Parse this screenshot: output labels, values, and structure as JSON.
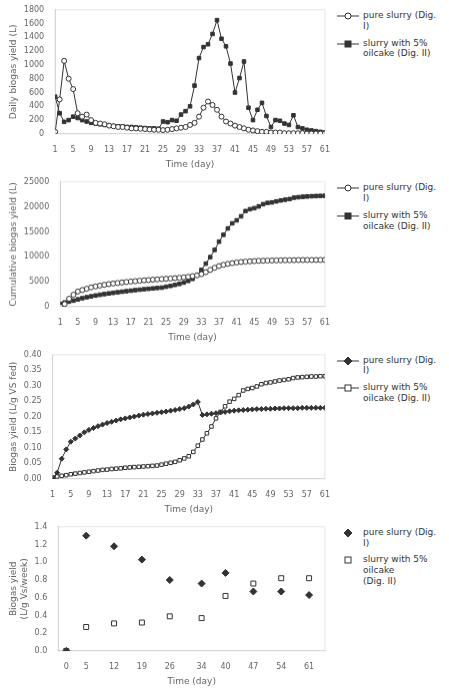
{
  "chart_data": [
    {
      "type": "line",
      "xlabel": "Time (day)",
      "ylabel": "Daily biogas yield (L)",
      "xlim": [
        1,
        61
      ],
      "ylim": [
        0,
        1800
      ],
      "xticks": [
        1,
        5,
        9,
        13,
        17,
        21,
        25,
        29,
        33,
        37,
        41,
        45,
        49,
        53,
        57,
        61
      ],
      "yticks": [
        0,
        200,
        400,
        600,
        800,
        1000,
        1200,
        1400,
        1600,
        1800
      ],
      "grid": false,
      "legend": "upper right",
      "x": [
        1,
        2,
        3,
        4,
        5,
        6,
        7,
        8,
        9,
        10,
        11,
        12,
        13,
        14,
        15,
        16,
        17,
        18,
        19,
        20,
        21,
        22,
        23,
        24,
        25,
        26,
        27,
        28,
        29,
        30,
        31,
        32,
        33,
        34,
        35,
        36,
        37,
        38,
        39,
        40,
        41,
        42,
        43,
        44,
        45,
        46,
        47,
        48,
        49,
        50,
        51,
        52,
        53,
        54,
        55,
        56,
        57,
        58,
        59,
        60,
        61
      ],
      "series": [
        {
          "name": "pure slurry (Dig. I)",
          "color": "#333333",
          "marker": "circle_open",
          "values": [
            30,
            500,
            1060,
            800,
            650,
            300,
            250,
            280,
            200,
            160,
            150,
            140,
            120,
            110,
            100,
            100,
            90,
            80,
            80,
            75,
            70,
            65,
            60,
            60,
            55,
            60,
            70,
            80,
            90,
            100,
            130,
            160,
            250,
            380,
            470,
            420,
            350,
            250,
            180,
            150,
            120,
            100,
            80,
            60,
            50,
            40,
            30,
            30,
            20,
            20,
            20,
            10,
            10,
            10,
            10,
            10,
            5,
            5,
            5,
            5,
            5
          ]
        },
        {
          "name": "slurry with 5%\noilcake (Dig. II)",
          "color": "#333333",
          "marker": "square",
          "values": [
            540,
            300,
            175,
            200,
            250,
            230,
            200,
            180,
            160,
            150,
            140,
            130,
            120,
            115,
            110,
            110,
            100,
            100,
            95,
            90,
            85,
            80,
            80,
            75,
            180,
            170,
            200,
            190,
            280,
            330,
            400,
            700,
            1100,
            1260,
            1300,
            1450,
            1650,
            1380,
            1270,
            1020,
            600,
            810,
            1050,
            380,
            200,
            350,
            450,
            260,
            100,
            200,
            190,
            150,
            130,
            270,
            100,
            80,
            60,
            50,
            40,
            30,
            20
          ]
        }
      ]
    },
    {
      "type": "line",
      "xlabel": "Time (day)",
      "ylabel": "Cumulative biogas yield (L)",
      "xlim": [
        1,
        61
      ],
      "ylim": [
        0,
        25000
      ],
      "xticks": [
        1,
        5,
        9,
        13,
        17,
        21,
        25,
        29,
        33,
        37,
        41,
        45,
        49,
        53,
        57,
        61
      ],
      "yticks": [
        0,
        5000,
        10000,
        15000,
        20000,
        25000
      ],
      "grid": false,
      "legend": "upper right",
      "x": [
        1,
        2,
        3,
        4,
        5,
        6,
        7,
        8,
        9,
        10,
        11,
        12,
        13,
        14,
        15,
        16,
        17,
        18,
        19,
        20,
        21,
        22,
        23,
        24,
        25,
        26,
        27,
        28,
        29,
        30,
        31,
        32,
        33,
        34,
        35,
        36,
        37,
        38,
        39,
        40,
        41,
        42,
        43,
        44,
        45,
        46,
        47,
        48,
        49,
        50,
        51,
        52,
        53,
        54,
        55,
        56,
        57,
        58,
        59,
        60,
        61
      ],
      "series": [
        {
          "name": "pure slurry (Dig. I)",
          "color": "#333333",
          "marker": "circle_open",
          "values": [
            30,
            530,
            1590,
            2390,
            3040,
            3340,
            3590,
            3870,
            4070,
            4230,
            4380,
            4520,
            4640,
            4750,
            4850,
            4950,
            5040,
            5120,
            5200,
            5275,
            5345,
            5410,
            5470,
            5530,
            5585,
            5645,
            5715,
            5795,
            5885,
            5985,
            6115,
            6275,
            6525,
            6905,
            7375,
            7795,
            8145,
            8395,
            8575,
            8725,
            8845,
            8945,
            9025,
            9085,
            9135,
            9175,
            9205,
            9235,
            9255,
            9275,
            9295,
            9305,
            9315,
            9325,
            9335,
            9345,
            9350,
            9355,
            9360,
            9365,
            9370
          ]
        },
        {
          "name": "slurry with 5%\noilcake (Dig. II)",
          "color": "#333333",
          "marker": "square",
          "values": [
            540,
            840,
            1015,
            1215,
            1465,
            1695,
            1895,
            2075,
            2235,
            2385,
            2525,
            2655,
            2775,
            2890,
            3000,
            3110,
            3210,
            3310,
            3405,
            3495,
            3580,
            3660,
            3740,
            3815,
            3995,
            4165,
            4365,
            4555,
            4835,
            5165,
            5565,
            6265,
            7365,
            8625,
            9925,
            11375,
            13025,
            14405,
            15675,
            16695,
            17295,
            18105,
            19155,
            19535,
            19735,
            20085,
            20535,
            20795,
            20895,
            21095,
            21285,
            21435,
            21565,
            21835,
            21935,
            22015,
            22075,
            22125,
            22165,
            22195,
            22215
          ]
        }
      ]
    },
    {
      "type": "line",
      "xlabel": "Time (day)",
      "ylabel": "Biogas yield (L/g VS fed)",
      "xlim": [
        1,
        61
      ],
      "ylim": [
        0,
        0.4
      ],
      "xticks": [
        1,
        5,
        9,
        13,
        17,
        21,
        25,
        29,
        33,
        37,
        41,
        45,
        49,
        53,
        57,
        61
      ],
      "yticks": [
        {
          "value": 0.0,
          "label": "0.00"
        },
        0.05,
        {
          "value": 0.1,
          "label": "0.10"
        },
        0.15,
        {
          "value": 0.2,
          "label": "0.20"
        },
        0.25,
        {
          "value": 0.3,
          "label": "0.30"
        },
        0.35,
        {
          "value": 0.4,
          "label": "0.40"
        }
      ],
      "grid": false,
      "legend": "upper right",
      "x": [
        1,
        2,
        3,
        4,
        5,
        6,
        7,
        8,
        9,
        10,
        11,
        12,
        13,
        14,
        15,
        16,
        17,
        18,
        19,
        20,
        21,
        22,
        23,
        24,
        25,
        26,
        27,
        28,
        29,
        30,
        31,
        32,
        33,
        34,
        35,
        36,
        37,
        38,
        39,
        40,
        41,
        42,
        43,
        44,
        45,
        46,
        47,
        48,
        49,
        50,
        51,
        52,
        53,
        54,
        55,
        56,
        57,
        58,
        59,
        60,
        61
      ],
      "series": [
        {
          "name": "pure slurry (Dig. I)",
          "color": "#333333",
          "marker": "diamond",
          "values": [
            0.001,
            0.02,
            0.065,
            0.095,
            0.12,
            0.13,
            0.14,
            0.15,
            0.158,
            0.164,
            0.17,
            0.175,
            0.18,
            0.184,
            0.188,
            0.192,
            0.195,
            0.198,
            0.201,
            0.204,
            0.207,
            0.209,
            0.211,
            0.213,
            0.215,
            0.217,
            0.22,
            0.222,
            0.225,
            0.228,
            0.233,
            0.24,
            0.248,
            0.206,
            0.208,
            0.21,
            0.212,
            0.214,
            0.216,
            0.218,
            0.22,
            0.221,
            0.222,
            0.223,
            0.224,
            0.225,
            0.225,
            0.226,
            0.226,
            0.227,
            0.227,
            0.228,
            0.228,
            0.228,
            0.228,
            0.229,
            0.229,
            0.229,
            0.229,
            0.229,
            0.229
          ]
        },
        {
          "name": "slurry with 5%\noilcake (Dig. II)",
          "color": "#333333",
          "marker": "square_open",
          "values": [
            0.005,
            0.008,
            0.01,
            0.012,
            0.015,
            0.017,
            0.019,
            0.021,
            0.023,
            0.025,
            0.027,
            0.029,
            0.03,
            0.032,
            0.033,
            0.034,
            0.036,
            0.037,
            0.038,
            0.039,
            0.04,
            0.041,
            0.042,
            0.043,
            0.046,
            0.049,
            0.052,
            0.055,
            0.06,
            0.066,
            0.073,
            0.087,
            0.107,
            0.127,
            0.147,
            0.169,
            0.195,
            0.216,
            0.234,
            0.249,
            0.258,
            0.27,
            0.285,
            0.29,
            0.293,
            0.298,
            0.305,
            0.309,
            0.311,
            0.314,
            0.317,
            0.319,
            0.321,
            0.325,
            0.327,
            0.328,
            0.329,
            0.33,
            0.33,
            0.331,
            0.331
          ]
        }
      ]
    },
    {
      "type": "scatter",
      "xlabel": "Time (day)",
      "ylabel": "Biogas yield\n(L/g Vs/week)",
      "xlim": [
        -2,
        65
      ],
      "ylim": [
        0,
        1.4
      ],
      "xticks": [
        0,
        5,
        12,
        19,
        26,
        34,
        40,
        47,
        54,
        61
      ],
      "yticks": [
        {
          "value": 0.0,
          "label": "0.0"
        },
        0.2,
        0.4,
        0.6,
        0.8,
        {
          "value": 1.0,
          "label": "1.0"
        },
        1.2,
        1.4
      ],
      "grid": false,
      "legend": "upper right",
      "x": [
        0,
        5,
        12,
        19,
        26,
        34,
        40,
        47,
        54,
        61
      ],
      "series": [
        {
          "name": "pure slurry (Dig. I)",
          "color": "#333333",
          "marker": "diamond",
          "values": [
            0.0,
            1.3,
            1.18,
            1.03,
            0.8,
            0.76,
            0.88,
            0.67,
            0.67,
            0.63
          ]
        },
        {
          "name": "slurry with 5% oilcake\n(Dig. II)",
          "color": "#333333",
          "marker": "square_open",
          "values": [
            0.0,
            0.27,
            0.31,
            0.32,
            0.39,
            0.37,
            0.62,
            0.76,
            0.82,
            0.82
          ]
        }
      ]
    }
  ]
}
